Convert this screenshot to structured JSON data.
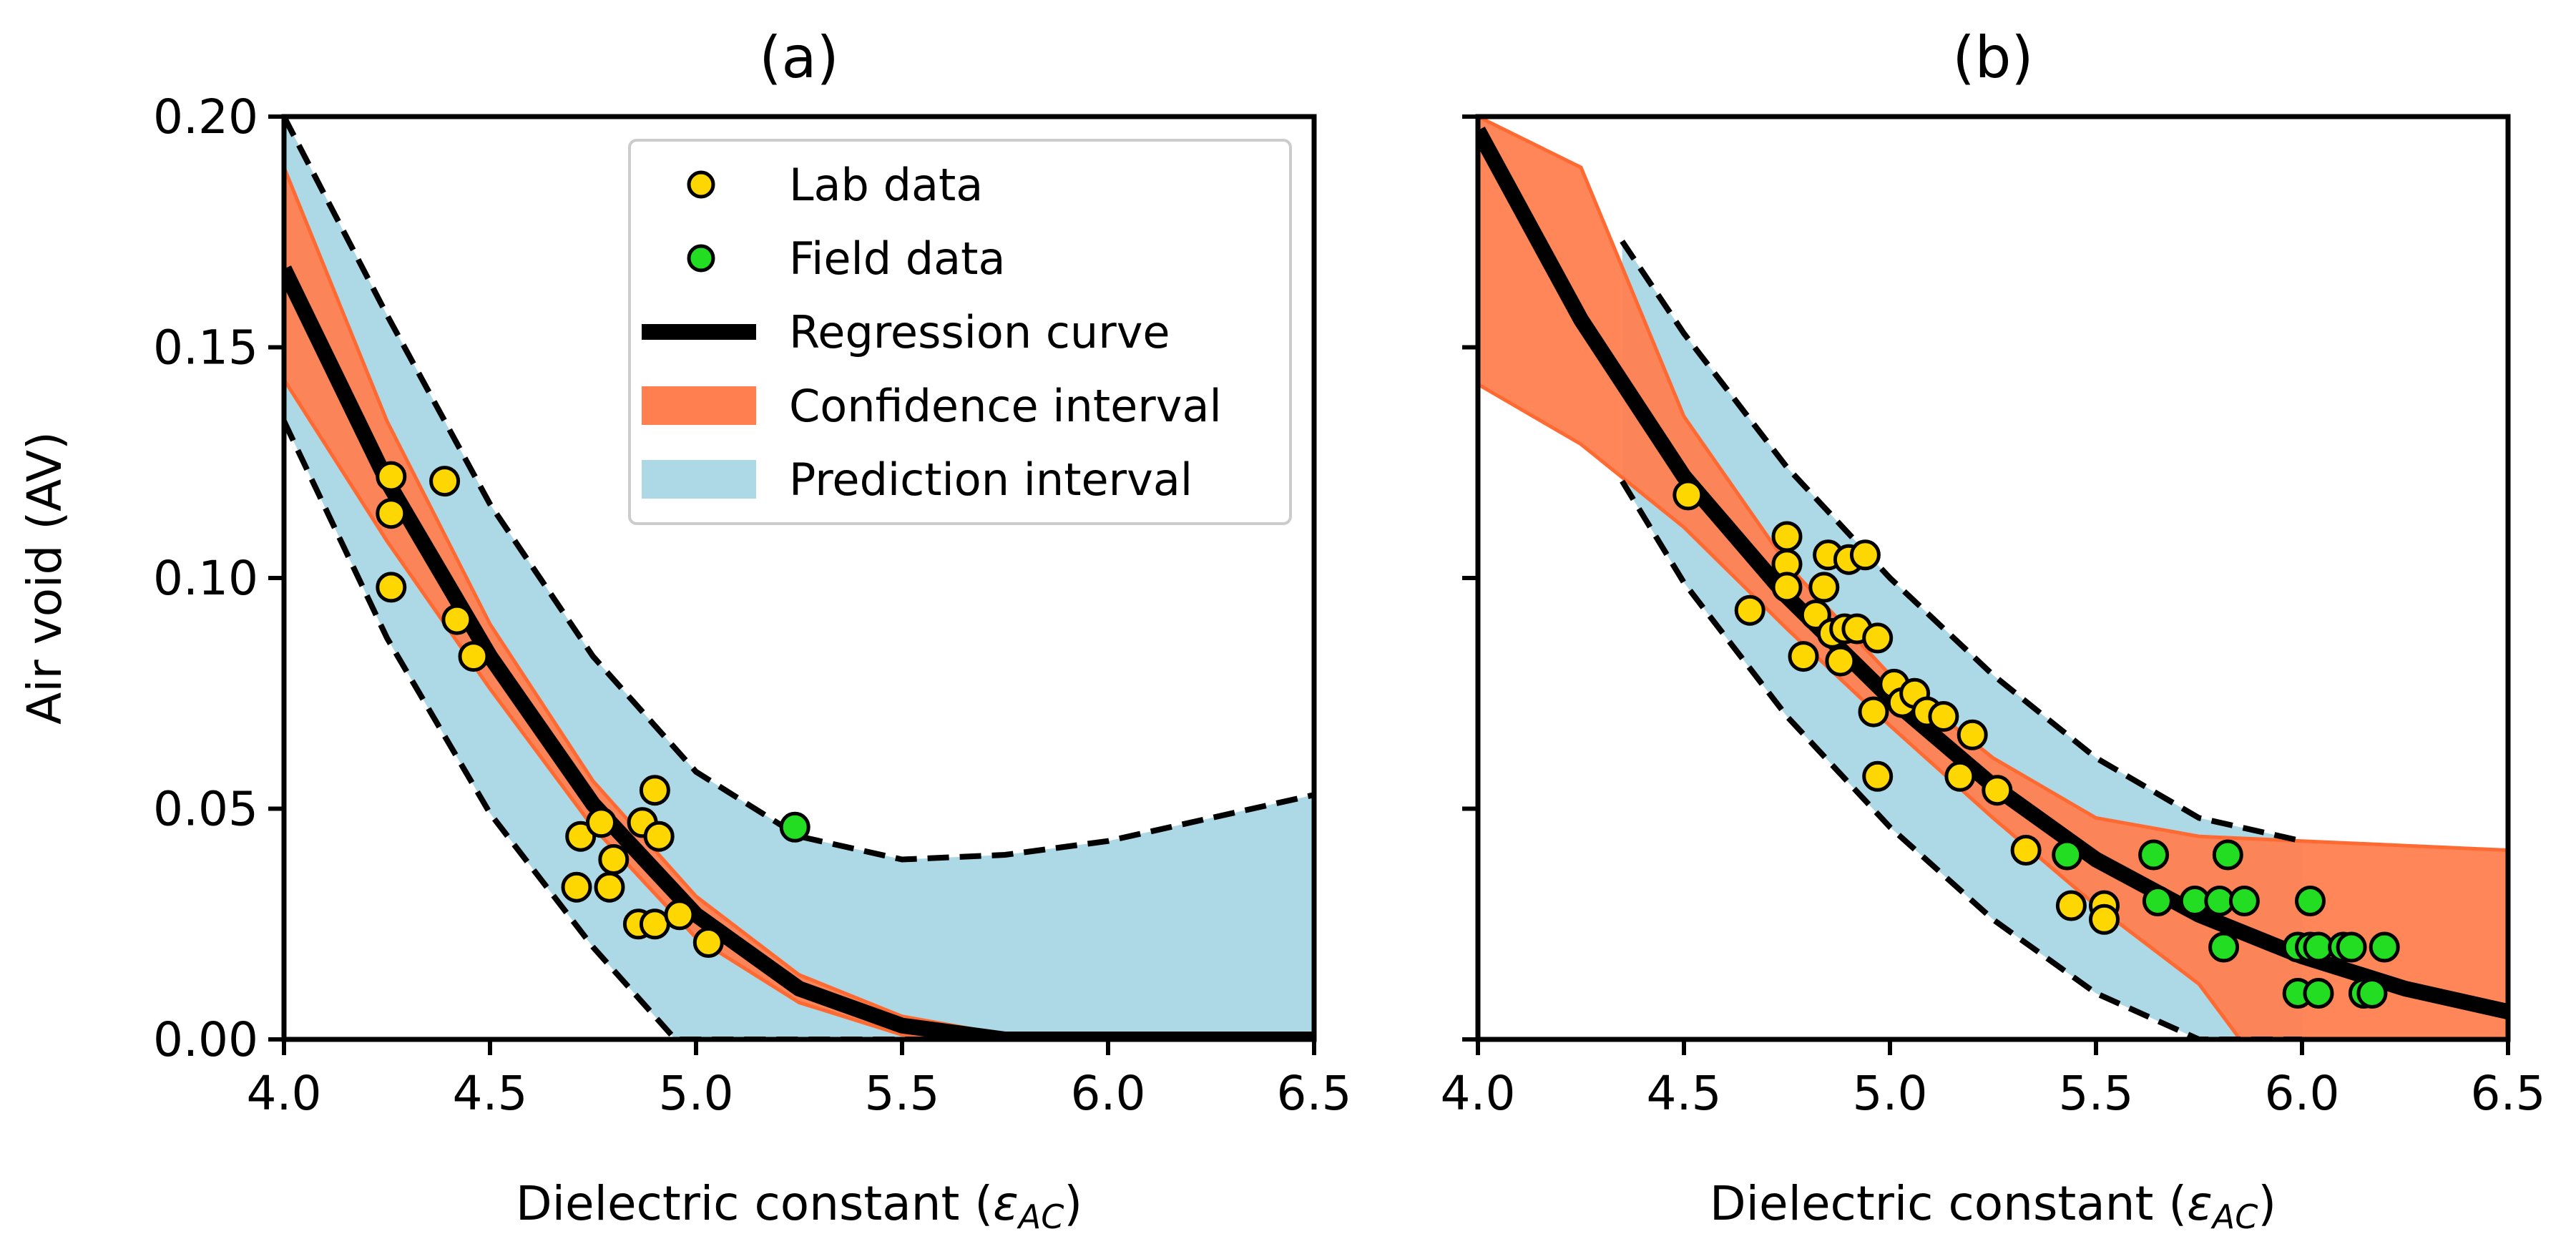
{
  "chart_data": [
    {
      "type": "scatter",
      "title": "(a)",
      "xlabel": "Dielectric constant (",
      "xlabel_symbol": "ε",
      "xlabel_sub": "AC",
      "xlabel_close": ")",
      "ylabel": "Air void (AV)",
      "xlim": [
        4.0,
        6.5
      ],
      "ylim": [
        0.0,
        0.2
      ],
      "xticks": [
        "4.0",
        "4.5",
        "5.0",
        "5.5",
        "6.0",
        "6.5"
      ],
      "yticks": [
        "0.00",
        "0.05",
        "0.10",
        "0.15",
        "0.20"
      ],
      "legend": {
        "position": "top-right",
        "entries": [
          "Lab data",
          "Field data",
          "Regression curve",
          "Confidence interval",
          "Prediction interval"
        ]
      },
      "colors": {
        "lab": "#FFD700",
        "field": "#22DD22",
        "regression": "#000000",
        "confidence": "#FF7F50",
        "prediction": "#ADD8E6"
      },
      "lab_data": [
        [
          4.26,
          0.122
        ],
        [
          4.26,
          0.114
        ],
        [
          4.26,
          0.098
        ],
        [
          4.39,
          0.121
        ],
        [
          4.42,
          0.091
        ],
        [
          4.46,
          0.083
        ],
        [
          4.71,
          0.033
        ],
        [
          4.72,
          0.044
        ],
        [
          4.77,
          0.047
        ],
        [
          4.79,
          0.033
        ],
        [
          4.8,
          0.039
        ],
        [
          4.86,
          0.025
        ],
        [
          4.87,
          0.047
        ],
        [
          4.9,
          0.054
        ],
        [
          4.9,
          0.025
        ],
        [
          4.91,
          0.044
        ],
        [
          4.96,
          0.027
        ],
        [
          5.03,
          0.021
        ]
      ],
      "field_data": [
        [
          5.24,
          0.046
        ]
      ],
      "regression_curve": [
        [
          4.0,
          0.167
        ],
        [
          4.25,
          0.121
        ],
        [
          4.5,
          0.083
        ],
        [
          4.75,
          0.051
        ],
        [
          5.0,
          0.027
        ],
        [
          5.25,
          0.011
        ],
        [
          5.5,
          0.003
        ],
        [
          5.75,
          0.0
        ],
        [
          6.0,
          0.0
        ],
        [
          6.25,
          0.0
        ],
        [
          6.5,
          0.0
        ]
      ],
      "confidence_upper": [
        [
          4.0,
          0.189
        ],
        [
          4.25,
          0.134
        ],
        [
          4.5,
          0.09
        ],
        [
          4.75,
          0.056
        ],
        [
          5.0,
          0.031
        ],
        [
          5.25,
          0.014
        ],
        [
          5.5,
          0.005
        ],
        [
          5.75,
          0.001
        ],
        [
          6.0,
          0.0
        ],
        [
          6.25,
          0.0
        ],
        [
          6.5,
          0.0
        ]
      ],
      "confidence_lower": [
        [
          4.0,
          0.143
        ],
        [
          4.25,
          0.108
        ],
        [
          4.5,
          0.076
        ],
        [
          4.75,
          0.046
        ],
        [
          5.0,
          0.022
        ],
        [
          5.25,
          0.008
        ],
        [
          5.5,
          0.001
        ],
        [
          5.75,
          0.0
        ],
        [
          6.0,
          0.0
        ],
        [
          6.25,
          0.0
        ],
        [
          6.5,
          0.0
        ]
      ],
      "prediction_upper": [
        [
          4.0,
          0.2
        ],
        [
          4.25,
          0.157
        ],
        [
          4.5,
          0.116
        ],
        [
          4.75,
          0.083
        ],
        [
          5.0,
          0.058
        ],
        [
          5.25,
          0.044
        ],
        [
          5.5,
          0.039
        ],
        [
          5.75,
          0.04
        ],
        [
          6.0,
          0.043
        ],
        [
          6.25,
          0.048
        ],
        [
          6.5,
          0.053
        ]
      ],
      "prediction_lower": [
        [
          4.0,
          0.134
        ],
        [
          4.25,
          0.087
        ],
        [
          4.5,
          0.049
        ],
        [
          4.75,
          0.02
        ],
        [
          4.95,
          0.0
        ],
        [
          5.25,
          0.0
        ],
        [
          5.5,
          0.0
        ],
        [
          5.75,
          0.0
        ],
        [
          6.0,
          0.0
        ],
        [
          6.25,
          0.0
        ],
        [
          6.5,
          0.0
        ]
      ]
    },
    {
      "type": "scatter",
      "title": "(b)",
      "xlabel": "Dielectric constant (",
      "xlabel_symbol": "ε",
      "xlabel_sub": "AC",
      "xlabel_close": ")",
      "ylabel": "",
      "xlim": [
        4.0,
        6.5
      ],
      "ylim": [
        0.0,
        0.2
      ],
      "xticks": [
        "4.0",
        "4.5",
        "5.0",
        "5.5",
        "6.0",
        "6.5"
      ],
      "yticks": [],
      "colors": {
        "lab": "#FFD700",
        "field": "#22DD22",
        "regression": "#000000",
        "confidence": "#FF7F50",
        "prediction": "#ADD8E6"
      },
      "lab_data": [
        [
          4.51,
          0.118
        ],
        [
          4.66,
          0.093
        ],
        [
          4.75,
          0.109
        ],
        [
          4.75,
          0.103
        ],
        [
          4.75,
          0.098
        ],
        [
          4.79,
          0.083
        ],
        [
          4.82,
          0.092
        ],
        [
          4.84,
          0.098
        ],
        [
          4.85,
          0.105
        ],
        [
          4.86,
          0.088
        ],
        [
          4.88,
          0.082
        ],
        [
          4.89,
          0.089
        ],
        [
          4.9,
          0.104
        ],
        [
          4.92,
          0.089
        ],
        [
          4.94,
          0.105
        ],
        [
          4.96,
          0.071
        ],
        [
          4.97,
          0.057
        ],
        [
          4.97,
          0.087
        ],
        [
          5.01,
          0.077
        ],
        [
          5.03,
          0.073
        ],
        [
          5.06,
          0.075
        ],
        [
          5.09,
          0.071
        ],
        [
          5.13,
          0.07
        ],
        [
          5.17,
          0.057
        ],
        [
          5.2,
          0.066
        ],
        [
          5.26,
          0.054
        ],
        [
          5.33,
          0.041
        ],
        [
          5.44,
          0.029
        ],
        [
          5.52,
          0.029
        ],
        [
          5.52,
          0.026
        ]
      ],
      "field_data": [
        [
          5.43,
          0.04
        ],
        [
          5.64,
          0.04
        ],
        [
          5.65,
          0.03
        ],
        [
          5.74,
          0.03
        ],
        [
          5.8,
          0.03
        ],
        [
          5.81,
          0.02
        ],
        [
          5.82,
          0.04
        ],
        [
          5.86,
          0.03
        ],
        [
          5.99,
          0.02
        ],
        [
          5.99,
          0.01
        ],
        [
          6.02,
          0.02
        ],
        [
          6.02,
          0.03
        ],
        [
          6.04,
          0.02
        ],
        [
          6.04,
          0.01
        ],
        [
          6.1,
          0.02
        ],
        [
          6.12,
          0.02
        ],
        [
          6.15,
          0.01
        ],
        [
          6.17,
          0.01
        ],
        [
          6.2,
          0.02
        ]
      ],
      "regression_curve": [
        [
          4.0,
          0.197
        ],
        [
          4.25,
          0.156
        ],
        [
          4.5,
          0.122
        ],
        [
          4.75,
          0.096
        ],
        [
          5.0,
          0.074
        ],
        [
          5.25,
          0.055
        ],
        [
          5.5,
          0.039
        ],
        [
          5.75,
          0.027
        ],
        [
          6.0,
          0.018
        ],
        [
          6.25,
          0.011
        ],
        [
          6.5,
          0.006
        ]
      ],
      "confidence_upper": [
        [
          4.0,
          0.2
        ],
        [
          4.25,
          0.189
        ],
        [
          4.5,
          0.135
        ],
        [
          4.75,
          0.103
        ],
        [
          5.0,
          0.079
        ],
        [
          5.25,
          0.061
        ],
        [
          5.5,
          0.048
        ],
        [
          5.75,
          0.044
        ],
        [
          6.0,
          0.043
        ],
        [
          6.25,
          0.042
        ],
        [
          6.5,
          0.041
        ]
      ],
      "confidence_lower": [
        [
          4.0,
          0.142
        ],
        [
          4.25,
          0.129
        ],
        [
          4.5,
          0.111
        ],
        [
          4.75,
          0.089
        ],
        [
          5.0,
          0.068
        ],
        [
          5.25,
          0.048
        ],
        [
          5.5,
          0.029
        ],
        [
          5.75,
          0.012
        ],
        [
          5.85,
          0.0
        ],
        [
          6.0,
          0.0
        ],
        [
          6.5,
          0.0
        ]
      ],
      "prediction_upper": [
        [
          4.35,
          0.173
        ],
        [
          4.5,
          0.153
        ],
        [
          4.75,
          0.124
        ],
        [
          5.0,
          0.1
        ],
        [
          5.25,
          0.079
        ],
        [
          5.5,
          0.061
        ],
        [
          5.75,
          0.048
        ],
        [
          6.0,
          0.043
        ]
      ],
      "prediction_lower": [
        [
          4.35,
          0.121
        ],
        [
          4.5,
          0.099
        ],
        [
          4.75,
          0.07
        ],
        [
          5.0,
          0.046
        ],
        [
          5.25,
          0.026
        ],
        [
          5.5,
          0.01
        ],
        [
          5.75,
          0.0
        ],
        [
          6.0,
          0.0
        ]
      ]
    }
  ]
}
